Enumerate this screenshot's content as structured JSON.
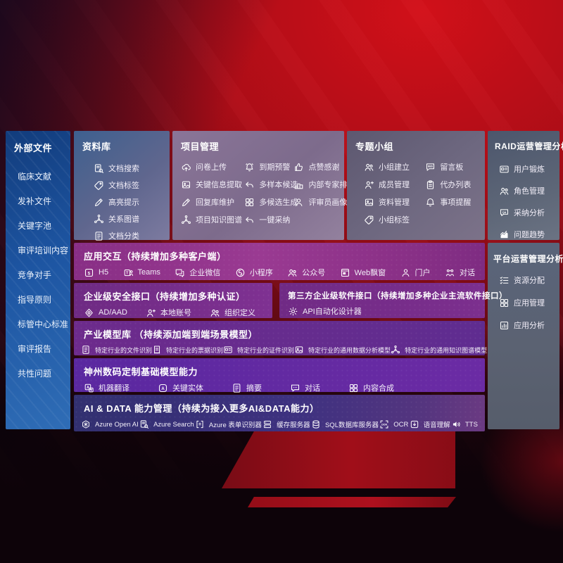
{
  "colors": {
    "background_red": "#ad0d17",
    "sidebar_blue": "#1d55a2",
    "panel_slate": "#5d6677",
    "row_purple": "#8c3188",
    "row_violet": "#5f2c90",
    "row_indigo": "#3e3180"
  },
  "sidebar": {
    "title": "外部文件",
    "items": [
      {
        "label": "临床文献"
      },
      {
        "label": "发补文件"
      },
      {
        "label": "关键字池"
      },
      {
        "label": "审评培训内容"
      },
      {
        "label": "竞争对手"
      },
      {
        "label": "指导原则"
      },
      {
        "label": "标管中心标准"
      },
      {
        "label": "审评报告"
      },
      {
        "label": "共性问题"
      }
    ]
  },
  "library": {
    "title": "资料库",
    "items": [
      {
        "icon": "doc-search",
        "label": "文档搜索"
      },
      {
        "icon": "tag",
        "label": "文档标签"
      },
      {
        "icon": "pen",
        "label": "高亮提示"
      },
      {
        "icon": "net-graph",
        "label": "关系图谱"
      },
      {
        "icon": "doc",
        "label": "文档分类"
      }
    ]
  },
  "project": {
    "title": "项目管理",
    "items": [
      {
        "icon": "cloud-upload",
        "label": "问卷上传"
      },
      {
        "icon": "alarm",
        "label": "到期预警"
      },
      {
        "icon": "thumbs-up",
        "label": "点赞感谢"
      },
      {
        "icon": "image",
        "label": "关键信息提取"
      },
      {
        "icon": "reply-arrow",
        "label": "多样本候选"
      },
      {
        "icon": "podium",
        "label": "内部专家排名"
      },
      {
        "icon": "pen",
        "label": "回复库维护"
      },
      {
        "icon": "grid",
        "label": "多候选生成"
      },
      {
        "icon": "person",
        "label": "评审员画像"
      },
      {
        "icon": "net-graph",
        "label": "项目知识图谱"
      },
      {
        "icon": "reply-arrow",
        "label": "一键采纳"
      }
    ]
  },
  "group": {
    "title": "专题小组",
    "items": [
      {
        "icon": "people",
        "label": "小组建立"
      },
      {
        "icon": "bbs",
        "label": "留言板"
      },
      {
        "icon": "person-plus",
        "label": "成员管理"
      },
      {
        "icon": "clipboard",
        "label": "代办列表"
      },
      {
        "icon": "image",
        "label": "资料管理"
      },
      {
        "icon": "bell",
        "label": "事项提醒"
      },
      {
        "icon": "tag",
        "label": "小组标签"
      }
    ]
  },
  "raid": {
    "title": "RAID运营管理分析",
    "items": [
      {
        "icon": "id-card",
        "label": "用户锻炼"
      },
      {
        "icon": "people",
        "label": "角色管理"
      },
      {
        "icon": "chat-qa",
        "label": "采纳分析"
      },
      {
        "icon": "trend-chart",
        "label": "问题趋势"
      }
    ]
  },
  "platform": {
    "title": "平台运营管理分析",
    "items": [
      {
        "icon": "checklist",
        "label": "资源分配"
      },
      {
        "icon": "grid",
        "label": "应用管理"
      },
      {
        "icon": "chart-box",
        "label": "应用分析"
      }
    ]
  },
  "interaction": {
    "title": "应用交互（持续增加多种客户端）",
    "items": [
      {
        "icon": "h5",
        "label": "H5"
      },
      {
        "icon": "teams",
        "label": "Teams"
      },
      {
        "icon": "wecom",
        "label": "企业微信"
      },
      {
        "icon": "mini-program",
        "label": "小程序"
      },
      {
        "icon": "people",
        "label": "公众号"
      },
      {
        "icon": "web-window",
        "label": "Web飘窗"
      },
      {
        "icon": "person",
        "label": "门户"
      },
      {
        "icon": "dialog-net",
        "label": "对话"
      }
    ]
  },
  "security": {
    "title": "企业级安全接口（持续增加多种认证）",
    "items": [
      {
        "icon": "shield",
        "label": "AD/AAD"
      },
      {
        "icon": "person-plus",
        "label": "本地账号"
      },
      {
        "icon": "people",
        "label": "组织定义"
      }
    ]
  },
  "third_party": {
    "title": "第三方企业级软件接口（持续增加多种企业主流软件接口）",
    "items": [
      {
        "icon": "gear",
        "label": "API自动化设计器"
      }
    ]
  },
  "industry_models": {
    "title": "产业模型库 （持续添加端到端场景模型）",
    "items": [
      {
        "icon": "doc",
        "label": "特定行业的文件识别"
      },
      {
        "icon": "receipt",
        "label": "特定行业的票据识别"
      },
      {
        "icon": "id-card",
        "label": "特定行业的证件识别"
      },
      {
        "icon": "image",
        "label": "特定行业的通用数据分析模型"
      },
      {
        "icon": "net-graph",
        "label": "特定行业的通用知识图谱模型"
      }
    ]
  },
  "dc_models": {
    "title": "神州数码定制基础模型能力",
    "items": [
      {
        "icon": "translate",
        "label": "机器翻译"
      },
      {
        "icon": "key-entity",
        "label": "关键实体"
      },
      {
        "icon": "doc",
        "label": "摘要"
      },
      {
        "icon": "chat-dots",
        "label": "对话"
      },
      {
        "icon": "grid",
        "label": "内容合成"
      }
    ]
  },
  "ai_data": {
    "title": "AI & DATA 能力管理（持续为接入更多AI&DATA能力）",
    "items": [
      {
        "icon": "openai",
        "label": "Azure Open AI"
      },
      {
        "icon": "doc-search",
        "label": "Azure Search"
      },
      {
        "icon": "brackets-doc",
        "label": "Azure 表单识别器"
      },
      {
        "icon": "server",
        "label": "缓存服务器"
      },
      {
        "icon": "sql-db",
        "label": "SQL数据库服务器"
      },
      {
        "icon": "ocr",
        "label": "OCR"
      },
      {
        "icon": "speech",
        "label": "语音理解"
      },
      {
        "icon": "tts",
        "label": "TTS"
      }
    ]
  }
}
